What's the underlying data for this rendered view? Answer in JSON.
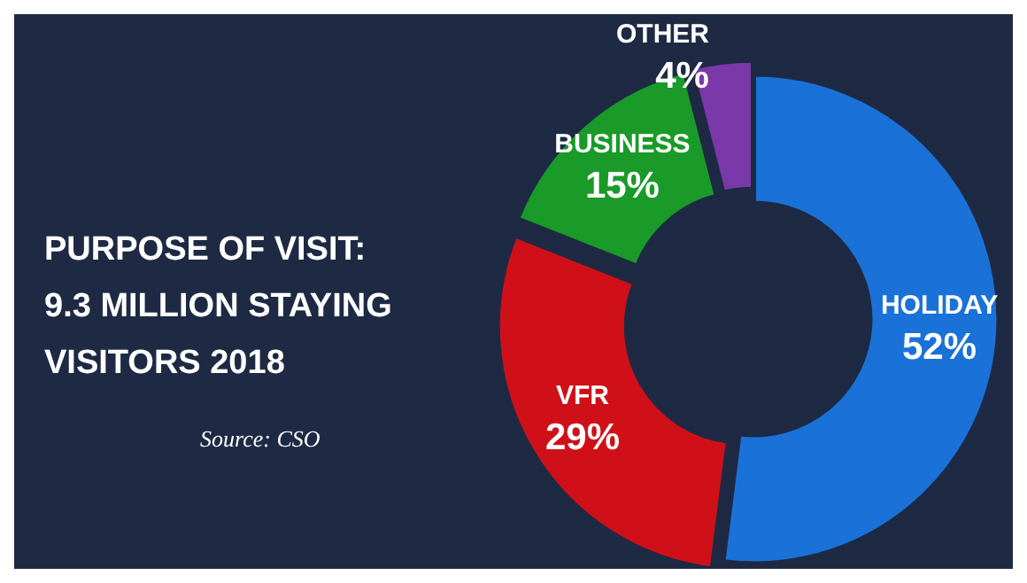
{
  "chart_data": {
    "type": "donut",
    "title": "PURPOSE OF VISIT: 9.3 MILLION STAYING VISITORS 2018",
    "annotations": [
      "Source: CSO"
    ],
    "categories": [
      "HOLIDAY",
      "VFR",
      "BUSINESS",
      "OTHER"
    ],
    "values": [
      52,
      29,
      15,
      4
    ],
    "value_labels": [
      "52%",
      "29%",
      "15%",
      "4%"
    ],
    "colors": [
      "#1a72d8",
      "#d01018",
      "#1a9a28",
      "#7a38a8"
    ],
    "legend": false
  }
}
